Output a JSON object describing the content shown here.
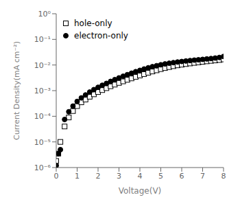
{
  "chart_data": {
    "type": "scatter",
    "xlabel": "Voltage(V)",
    "ylabel": "Current Density(mA cm⁻²)",
    "x": [
      0.0,
      0.1,
      0.2,
      0.4,
      0.6,
      0.8,
      1.0,
      1.2,
      1.4,
      1.6,
      1.8,
      2.0,
      2.2,
      2.4,
      2.6,
      2.8,
      3.0,
      3.2,
      3.4,
      3.6,
      3.8,
      4.0,
      4.2,
      4.4,
      4.6,
      4.8,
      5.0,
      5.2,
      5.4,
      5.6,
      5.8,
      6.0,
      6.2,
      6.4,
      6.6,
      6.8,
      7.0,
      7.2,
      7.4,
      7.6,
      7.8,
      8.0
    ],
    "series": [
      {
        "name": "hole-only",
        "color": "#000000",
        "marker": "open_square",
        "values": [
          1.8e-06,
          3.5e-06,
          1e-05,
          4e-05,
          9e-05,
          0.00016,
          0.00025,
          0.00035,
          0.00045,
          0.00058,
          0.00072,
          0.00088,
          0.00105,
          0.00125,
          0.00148,
          0.00172,
          0.002,
          0.0023,
          0.00265,
          0.003,
          0.00345,
          0.0039,
          0.0044,
          0.005,
          0.0056,
          0.0062,
          0.0069,
          0.0076,
          0.0083,
          0.009,
          0.0097,
          0.0103,
          0.0109,
          0.0115,
          0.0121,
          0.0127,
          0.0133,
          0.0139,
          0.0145,
          0.0151,
          0.0157,
          0.0165
        ]
      },
      {
        "name": "electron-only",
        "color": "#000000",
        "marker": "filled_circle",
        "values": [
          1.2e-06,
          3.5e-06,
          5e-06,
          7.5e-05,
          0.00015,
          0.00025,
          0.00038,
          0.00052,
          0.00068,
          0.00088,
          0.0011,
          0.00135,
          0.00162,
          0.00192,
          0.0023,
          0.0027,
          0.00315,
          0.00365,
          0.0042,
          0.0048,
          0.0055,
          0.0062,
          0.007,
          0.0078,
          0.0086,
          0.0094,
          0.0102,
          0.011,
          0.0117,
          0.0124,
          0.0131,
          0.0137,
          0.0143,
          0.0149,
          0.0155,
          0.016,
          0.0166,
          0.0172,
          0.0179,
          0.0187,
          0.0197,
          0.0215
        ]
      }
    ],
    "xlim": [
      0,
      8
    ],
    "xticks": [
      0,
      1,
      2,
      3,
      4,
      5,
      6,
      7,
      8
    ],
    "ylim": [
      1e-06,
      1
    ],
    "yticks": [
      {
        "value": 1e-06,
        "label": "10⁻⁶"
      },
      {
        "value": 1e-05,
        "label": "10⁻⁵"
      },
      {
        "value": 0.0001,
        "label": "10⁻⁴"
      },
      {
        "value": 0.001,
        "label": "10⁻³"
      },
      {
        "value": 0.01,
        "label": "10⁻²"
      },
      {
        "value": 0.1,
        "label": "10⁻¹"
      },
      {
        "value": 1,
        "label": "10⁰"
      }
    ],
    "log": "y",
    "grid": false,
    "legend": "upper left"
  }
}
